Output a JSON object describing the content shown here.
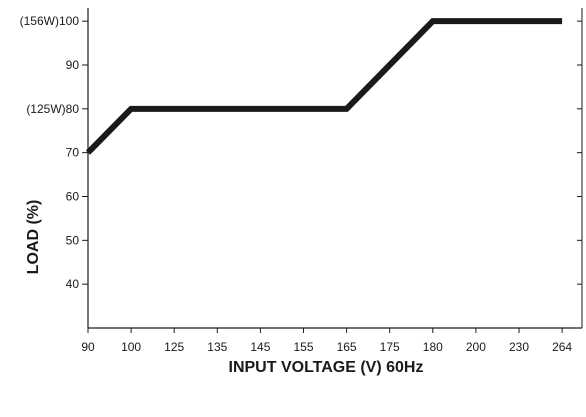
{
  "chart_data": {
    "type": "line",
    "xlabel": "INPUT VOLTAGE (V) 60Hz",
    "ylabel": "LOAD (%)",
    "x_axis_type": "categorical-evenly-spaced",
    "x_ticks": [
      "90",
      "100",
      "125",
      "135",
      "145",
      "155",
      "165",
      "175",
      "180",
      "200",
      "230",
      "264"
    ],
    "y_ticks": [
      {
        "value": 40,
        "label": "40"
      },
      {
        "value": 50,
        "label": "50"
      },
      {
        "value": 60,
        "label": "60"
      },
      {
        "value": 70,
        "label": "70"
      },
      {
        "value": 80,
        "label": "(125W)80"
      },
      {
        "value": 90,
        "label": "90"
      },
      {
        "value": 100,
        "label": "(156W)100"
      }
    ],
    "ylim": [
      30,
      103
    ],
    "grid": false,
    "series": [
      {
        "color": "#1a1a1a",
        "points": [
          {
            "x": "90",
            "y": 70
          },
          {
            "x": "100",
            "y": 80
          },
          {
            "x": "165",
            "y": 80
          },
          {
            "x": "180",
            "y": 100
          },
          {
            "x": "264",
            "y": 100
          }
        ]
      }
    ]
  }
}
